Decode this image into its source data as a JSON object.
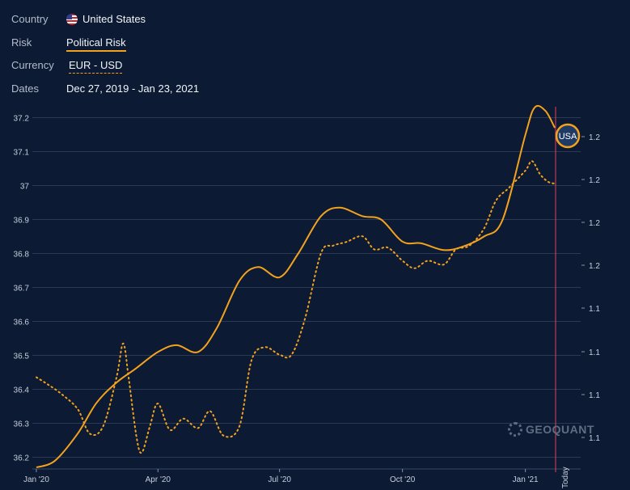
{
  "filters": {
    "country_label": "Country",
    "country_value": "United States",
    "risk_label": "Risk",
    "risk_value": "Political Risk",
    "currency_label": "Currency",
    "currency_value": "EUR - USD",
    "dates_label": "Dates",
    "dates_value": "Dec 27, 2019 - Jan 23, 2021"
  },
  "watermark": "GEOQUANT",
  "colors": {
    "background": "#0c1a33",
    "risk_line": "#f2a21e",
    "today_line": "#e0405a",
    "grid": "#2a3a55"
  },
  "chart_data": {
    "type": "line",
    "title": "",
    "xlabel": "",
    "ylabel": "",
    "x_ticks": [
      "Jan '20",
      "Apr '20",
      "Jul '20",
      "Oct '20",
      "Jan '21",
      "Today"
    ],
    "y_left_ticks": [
      "36.2",
      "36.3",
      "36.4",
      "36.5",
      "36.6",
      "36.7",
      "36.8",
      "36.9",
      "37",
      "37.1",
      "37.2"
    ],
    "y_left_range": [
      36.17,
      37.24
    ],
    "y_right_ticks": [
      "1.1",
      "1.1",
      "1.1",
      "1.1",
      "1.2",
      "1.2",
      "1.2",
      "1.2"
    ],
    "y_right_range": [
      1.075,
      1.245
    ],
    "marker_label": "USA",
    "series": [
      {
        "name": "Political Risk",
        "axis": "left",
        "style": "solid",
        "x": [
          "2020-01-01",
          "2020-01-15",
          "2020-02-01",
          "2020-02-15",
          "2020-03-01",
          "2020-03-15",
          "2020-04-01",
          "2020-04-15",
          "2020-05-01",
          "2020-05-15",
          "2020-06-01",
          "2020-06-15",
          "2020-07-01",
          "2020-07-15",
          "2020-08-01",
          "2020-08-15",
          "2020-09-01",
          "2020-09-15",
          "2020-10-01",
          "2020-10-15",
          "2020-11-01",
          "2020-11-15",
          "2020-12-01",
          "2020-12-15",
          "2021-01-01",
          "2021-01-08",
          "2021-01-16",
          "2021-01-23"
        ],
        "values": [
          36.17,
          36.19,
          36.27,
          36.36,
          36.42,
          36.46,
          36.51,
          36.53,
          36.51,
          36.58,
          36.72,
          36.76,
          36.73,
          36.8,
          36.91,
          36.935,
          36.91,
          36.9,
          36.835,
          36.83,
          36.81,
          36.82,
          36.85,
          36.9,
          37.15,
          37.23,
          37.22,
          37.17
        ]
      },
      {
        "name": "EUR - USD",
        "axis": "right",
        "style": "dotted",
        "x": [
          "2020-01-01",
          "2020-01-10",
          "2020-01-20",
          "2020-02-01",
          "2020-02-10",
          "2020-02-20",
          "2020-03-01",
          "2020-03-06",
          "2020-03-10",
          "2020-03-16",
          "2020-03-20",
          "2020-03-26",
          "2020-04-01",
          "2020-04-10",
          "2020-04-20",
          "2020-05-01",
          "2020-05-10",
          "2020-05-20",
          "2020-06-01",
          "2020-06-10",
          "2020-06-20",
          "2020-07-01",
          "2020-07-10",
          "2020-07-20",
          "2020-08-01",
          "2020-08-10",
          "2020-08-20",
          "2020-09-01",
          "2020-09-10",
          "2020-09-20",
          "2020-10-01",
          "2020-10-10",
          "2020-10-20",
          "2020-11-01",
          "2020-11-10",
          "2020-11-20",
          "2020-12-01",
          "2020-12-10",
          "2020-12-20",
          "2021-01-01",
          "2021-01-06",
          "2021-01-12",
          "2021-01-18",
          "2021-01-23"
        ],
        "values": [
          1.112,
          1.108,
          1.103,
          1.095,
          1.082,
          1.086,
          1.112,
          1.13,
          1.112,
          1.08,
          1.072,
          1.086,
          1.098,
          1.084,
          1.09,
          1.085,
          1.094,
          1.081,
          1.086,
          1.121,
          1.128,
          1.124,
          1.124,
          1.143,
          1.178,
          1.182,
          1.184,
          1.187,
          1.18,
          1.181,
          1.174,
          1.17,
          1.174,
          1.172,
          1.18,
          1.182,
          1.191,
          1.206,
          1.213,
          1.222,
          1.227,
          1.22,
          1.216,
          1.215
        ]
      }
    ]
  }
}
